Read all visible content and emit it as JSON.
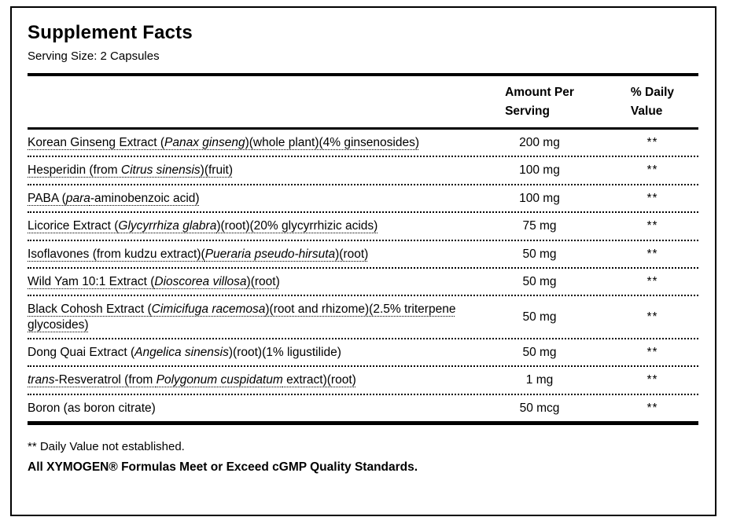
{
  "label": {
    "title": "Supplement Facts",
    "serving_size": "Serving Size: 2 Capsules"
  },
  "table": {
    "header": {
      "amount_lines": [
        "Amount Per",
        "Serving"
      ],
      "dv_lines": [
        "% Daily",
        "Value"
      ]
    },
    "rows": [
      {
        "segments": [
          [
            "Korean Ginseng Extract (",
            0
          ],
          [
            "Panax ginseng",
            1
          ],
          [
            ")(whole plant)(4% ginsenosides)",
            0
          ]
        ],
        "amount": "200 mg",
        "dv": "**",
        "underline": true
      },
      {
        "segments": [
          [
            "Hesperidin (from ",
            0
          ],
          [
            "Citrus sinensis",
            1
          ],
          [
            ")(fruit)",
            0
          ]
        ],
        "amount": "100 mg",
        "dv": "**",
        "underline": true
      },
      {
        "segments": [
          [
            "PABA (",
            0
          ],
          [
            "para",
            1
          ],
          [
            "-aminobenzoic acid)",
            0
          ]
        ],
        "amount": "100 mg",
        "dv": "**",
        "underline": true
      },
      {
        "segments": [
          [
            "Licorice Extract (",
            0
          ],
          [
            "Glycyrrhiza glabra",
            1
          ],
          [
            ")(root)(20% glycyrrhizic acids)",
            0
          ]
        ],
        "amount": "75 mg",
        "dv": "**",
        "underline": true
      },
      {
        "segments": [
          [
            "Isoflavones (from kudzu extract)(",
            0
          ],
          [
            "Pueraria pseudo-hirsuta",
            1
          ],
          [
            ")(root)",
            0
          ]
        ],
        "amount": "50 mg",
        "dv": "**",
        "underline": true
      },
      {
        "segments": [
          [
            "Wild Yam 10:1 Extract (",
            0
          ],
          [
            "Dioscorea villosa",
            1
          ],
          [
            ")(root)",
            0
          ]
        ],
        "amount": "50 mg",
        "dv": "**",
        "underline": true
      },
      {
        "segments": [
          [
            "Black Cohosh Extract (",
            0
          ],
          [
            "Cimicifuga racemosa",
            1
          ],
          [
            ")(root and rhizome)(2.5% triterpene glycosides)",
            0
          ]
        ],
        "amount": "50 mg",
        "dv": "**",
        "underline": true
      },
      {
        "segments": [
          [
            "Dong Quai Extract (",
            0
          ],
          [
            "Angelica sinensis",
            1
          ],
          [
            ")(root)(1% ligustilide)",
            0
          ]
        ],
        "amount": "50 mg",
        "dv": "**",
        "underline": false
      },
      {
        "segments": [
          [
            "trans",
            1
          ],
          [
            "-Resveratrol (from ",
            0
          ],
          [
            "Polygonum cuspidatum",
            1
          ],
          [
            " extract)(root)",
            0
          ]
        ],
        "amount": "1 mg",
        "dv": "**",
        "underline": true
      },
      {
        "segments": [
          [
            "Boron (as boron citrate)",
            0
          ]
        ],
        "amount": "50 mcg",
        "dv": "**",
        "underline": false
      }
    ]
  },
  "footnotes": {
    "daily_value": "** Daily Value not established.",
    "quality": "All XYMOGEN® Formulas Meet or Exceed cGMP Quality Standards."
  }
}
